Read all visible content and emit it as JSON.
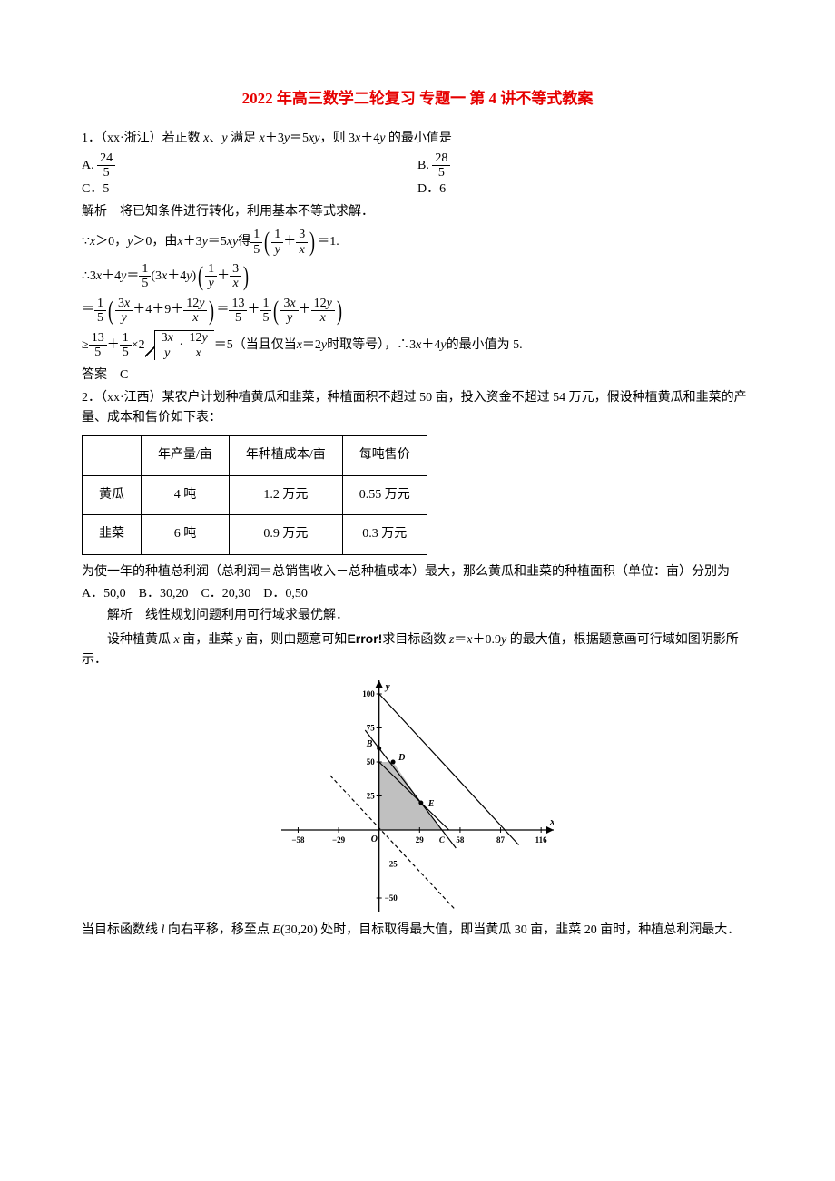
{
  "title": "2022 年高三数学二轮复习 专题一 第 4 讲不等式教案",
  "q1": {
    "stem": "1．（xx·浙江）若正数 ",
    "stem2": "、",
    "stem3": " 满足 ",
    "stem4": "＋3",
    "stem5": "＝5",
    "stem6": "，则 3",
    "stem7": "＋4",
    "stem8": " 的最小值是",
    "optA_num": "24",
    "optA_den": "5",
    "optA_prefix": "A.",
    "optB_num": "28",
    "optB_den": "5",
    "optB_prefix": "B.",
    "optC": "C．5",
    "optD": "D．6",
    "analysis": "解析　将已知条件进行转化，利用基本不等式求解．",
    "line1_a": "∵",
    "line1_b": "＞0，",
    "line1_c": "＞0，由 ",
    "line1_d": "＋3",
    "line1_e": "＝5",
    "line1_f": " 得",
    "line1_g": "＝1.",
    "line2_a": "∴3",
    "line2_b": "＋4",
    "line2_c": "＝",
    "line2_d": "(3",
    "line2_e": "＋4",
    "line2_f": ")",
    "line3_a": "＝",
    "line3_b": "＋4＋9＋",
    "line3_c": "＝",
    "line3_d": "＋",
    "line4_a": "≥",
    "line4_b": "＋",
    "line4_c": "×2",
    "line4_d": "＝5（当且仅当 ",
    "line4_e": "＝2",
    "line4_f": " 时取等号），∴3",
    "line4_g": "＋4",
    "line4_h": " 的最小值为 5.",
    "answer": "答案　C"
  },
  "q2": {
    "stem": "2．（xx·江西）某农户计划种植黄瓜和韭菜，种植面积不超过 50 亩，投入资金不超过 54 万元，假设种植黄瓜和韭菜的产量、成本和售价如下表：",
    "h1": "年产量/亩",
    "h2": "年种植成本/亩",
    "h3": "每吨售价",
    "r1c0": "黄瓜",
    "r1c1": "4 吨",
    "r1c2": "1.2 万元",
    "r1c3": "0.55 万元",
    "r2c0": "韭菜",
    "r2c1": "6 吨",
    "r2c2": "0.9 万元",
    "r2c3": "0.3 万元",
    "aftertable": "为使一年的种植总利润（总利润＝总销售收入－总种植成本）最大，那么黄瓜和韭菜的种植面积（单位：亩）分别为",
    "opts": "A．50,0　B．30,20　C．20,30　D．0,50",
    "analysis1": "解析　线性规划问题利用可行域求最优解．",
    "analysis2a": "设种植黄瓜 ",
    "analysis2b": " 亩，韭菜 ",
    "analysis2c": " 亩，则由题意可知",
    "analysis2d": "求目标函数 ",
    "analysis2e": "＝",
    "analysis2f": "＋0.9",
    "analysis2g": " 的最大值，根据题意画可行域如图阴影所示．",
    "err": "Error!",
    "concl": "当目标函数线 ",
    "concl2": " 向右平移，移至点 ",
    "concl3": "(30,20) 处时，目标取得最大值，即当黄瓜 30 亩，韭菜 20 亩时，种植总利润最大．",
    "graph": {
      "xmin": -70,
      "xmax": 125,
      "ymin": -60,
      "ymax": 110,
      "xlabel": "x",
      "ylabel": "y",
      "xticks": [
        -58,
        -29,
        29,
        58,
        87,
        116
      ],
      "xticklabels": [
        "−58",
        "−29",
        "29",
        "58",
        "87",
        "116"
      ],
      "xtick_extra_label": "C",
      "yticks": [
        -50,
        -25,
        25,
        50,
        75,
        100
      ],
      "origin_label": "O",
      "points": {
        "B": [
          0,
          60
        ],
        "D": [
          10,
          50
        ],
        "E": [
          30,
          20
        ]
      },
      "pointB_label": "B",
      "pointD_label": "D",
      "pointE_label": "E",
      "axis_color": "#000",
      "line_color": "#000",
      "fill_color": "#c0c0c0",
      "tick_fontsize": 9,
      "label_fontweight": "bold",
      "lines": [
        {
          "x1": 0,
          "y1": 50,
          "x2": 50,
          "y2": 0
        },
        {
          "x1": -10,
          "y1": 73.3,
          "x2": 55,
          "y2": -13.3
        },
        {
          "x1": 0,
          "y1": 100,
          "x2": 100,
          "y2": -11
        },
        {
          "x1": -35,
          "y1": 40,
          "x2": 54,
          "y2": -58,
          "dashed": true
        }
      ],
      "region": [
        [
          0,
          0
        ],
        [
          0,
          50
        ],
        [
          10,
          50
        ],
        [
          30,
          20
        ],
        [
          45,
          0
        ]
      ]
    }
  }
}
